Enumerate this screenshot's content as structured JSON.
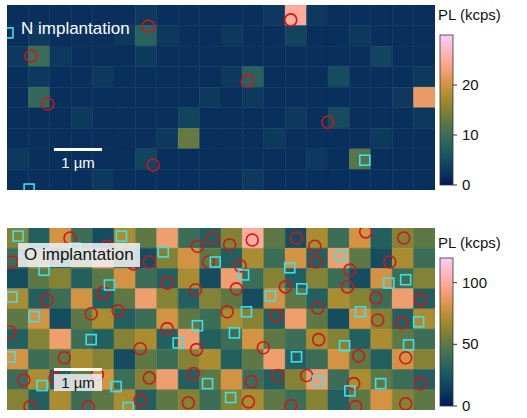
{
  "chart_data": [
    {
      "type": "heatmap",
      "title": "N implantation",
      "xlim": [
        0,
        8.9
      ],
      "ylim": [
        0,
        3.85
      ],
      "tick_labels": false,
      "cells": [
        [
          2,
          2,
          2,
          2,
          2,
          2,
          3,
          2,
          2,
          2,
          2,
          2,
          3,
          25,
          3,
          2,
          2,
          2,
          2,
          2
        ],
        [
          2,
          3,
          2,
          2,
          2,
          3,
          8,
          3,
          2,
          2,
          3,
          2,
          2,
          4,
          2,
          2,
          3,
          2,
          2,
          2
        ],
        [
          3,
          10,
          3,
          2,
          2,
          2,
          3,
          2,
          2,
          2,
          2,
          2,
          2,
          2,
          2,
          2,
          2,
          4,
          2,
          2
        ],
        [
          2,
          3,
          2,
          2,
          3,
          2,
          2,
          2,
          2,
          2,
          3,
          8,
          2,
          2,
          2,
          5,
          2,
          2,
          2,
          3
        ],
        [
          2,
          9,
          2,
          2,
          2,
          2,
          2,
          2,
          2,
          3,
          2,
          3,
          2,
          2,
          2,
          2,
          2,
          2,
          3,
          22
        ],
        [
          2,
          2,
          2,
          3,
          2,
          2,
          2,
          2,
          4,
          2,
          2,
          2,
          2,
          3,
          2,
          5,
          2,
          2,
          2,
          3
        ],
        [
          2,
          2,
          2,
          2,
          2,
          2,
          2,
          3,
          13,
          2,
          2,
          2,
          3,
          2,
          2,
          2,
          2,
          3,
          2,
          2
        ],
        [
          3,
          2,
          2,
          2,
          2,
          2,
          4,
          2,
          2,
          2,
          2,
          2,
          2,
          2,
          3,
          2,
          12,
          2,
          2,
          2
        ],
        [
          2,
          2,
          2,
          2,
          3,
          2,
          2,
          2,
          2,
          2,
          2,
          3,
          2,
          2,
          2,
          2,
          2,
          2,
          2,
          2
        ]
      ],
      "colorbar": {
        "label": "PL (kcps)",
        "range": [
          0,
          30
        ],
        "ticks": [
          0,
          10,
          20
        ]
      },
      "scale_bar": {
        "length": 1,
        "label": "1 µm"
      },
      "series": [
        {
          "marker": "circle",
          "color": "#c8191e",
          "x": [
            2.94,
            5.9,
            0.5,
            0.85,
            5.0,
            6.67,
            3.04
          ],
          "y": [
            0.44,
            0.31,
            1.06,
            2.06,
            1.58,
            2.44,
            3.33
          ]
        },
        {
          "marker": "square",
          "color": "#3ee0ea",
          "x": [
            0.02,
            7.44,
            0.46
          ],
          "y": [
            0.58,
            3.23,
            3.83
          ]
        }
      ]
    },
    {
      "type": "heatmap",
      "title": "O implantation",
      "xlim": [
        0,
        8.9
      ],
      "ylim": [
        0,
        3.8
      ],
      "tick_labels": false,
      "cells": [
        [
          60,
          30,
          80,
          40,
          20,
          70,
          50,
          90,
          40,
          30,
          60,
          100,
          50,
          20,
          70,
          40,
          80,
          30,
          60,
          50
        ],
        [
          40,
          70,
          30,
          60,
          90,
          40,
          20,
          60,
          80,
          50,
          30,
          70,
          40,
          80,
          30,
          90,
          50,
          20,
          70,
          40
        ],
        [
          20,
          50,
          60,
          30,
          50,
          80,
          40,
          30,
          70,
          20,
          90,
          40,
          60,
          30,
          60,
          40,
          20,
          80,
          40,
          60
        ],
        [
          70,
          30,
          40,
          80,
          30,
          50,
          90,
          60,
          30,
          60,
          50,
          20,
          80,
          50,
          30,
          70,
          60,
          40,
          90,
          30
        ],
        [
          50,
          80,
          20,
          50,
          70,
          30,
          40,
          80,
          50,
          40,
          70,
          60,
          30,
          90,
          50,
          20,
          80,
          60,
          30,
          70
        ],
        [
          30,
          60,
          90,
          40,
          30,
          60,
          70,
          30,
          90,
          30,
          40,
          80,
          50,
          40,
          70,
          60,
          30,
          70,
          50,
          40
        ],
        [
          80,
          40,
          50,
          70,
          60,
          20,
          50,
          40,
          60,
          70,
          30,
          50,
          90,
          30,
          40,
          80,
          50,
          30,
          80,
          60
        ],
        [
          40,
          70,
          30,
          50,
          80,
          40,
          60,
          90,
          30,
          50,
          80,
          40,
          30,
          60,
          90,
          40,
          70,
          50,
          40,
          30
        ],
        [
          60,
          30,
          70,
          40,
          50,
          70,
          30,
          50,
          60,
          40,
          60,
          70,
          50,
          40,
          60,
          30,
          50,
          80,
          60,
          50
        ]
      ],
      "colorbar": {
        "label": "PL (kcps)",
        "range": [
          0,
          120
        ],
        "ticks": [
          0,
          50,
          100
        ]
      },
      "scale_bar": {
        "length": 1,
        "label": "1 µm"
      },
      "series": [
        {
          "marker": "circle",
          "color": "#c8191e",
          "x": [
            1.31,
            2.08,
            3.96,
            4.27,
            4.63,
            5.1,
            6.02,
            6.4,
            7.46,
            8.25,
            0.1,
            1.04,
            2.63,
            2.96,
            4.19,
            4.85,
            6.42,
            7.13,
            7.96,
            2.0,
            3.33,
            3.92,
            4.77,
            5.79,
            7.08,
            7.67,
            8.6,
            0.06,
            0.83,
            1.75,
            2.31,
            3.33,
            4.58,
            5.6,
            6.46,
            7.71,
            8.21,
            2.77,
            3.94,
            5.33,
            6.48,
            7.31,
            8.29,
            1.19,
            0.35,
            1.0,
            1.88,
            2.96,
            3.88,
            5.08,
            5.63,
            6.23,
            7.21,
            8.6,
            0.48,
            1.69,
            2.77,
            3.77,
            5.02,
            5.9,
            7.25,
            8.29
          ],
          "y": [
            0.21,
            0.38,
            0.38,
            0.21,
            0.35,
            0.25,
            0.21,
            0.38,
            0.08,
            0.21,
            0.71,
            0.6,
            0.75,
            0.71,
            0.71,
            0.79,
            0.71,
            0.88,
            0.71,
            1.35,
            1.15,
            1.29,
            1.27,
            1.23,
            1.23,
            1.46,
            1.5,
            2.17,
            1.5,
            1.79,
            1.73,
            2.1,
            1.75,
            1.83,
            1.67,
            1.92,
            1.98,
            2.52,
            2.54,
            2.5,
            2.33,
            2.67,
            2.71,
            2.71,
            3.17,
            3.13,
            3.06,
            3.13,
            3.04,
            3.21,
            3.08,
            3.08,
            3.25,
            3.25,
            3.73,
            3.73,
            3.6,
            3.65,
            3.63,
            3.71,
            3.73,
            3.67
          ]
        },
        {
          "marker": "square",
          "color": "#3ee0ea",
          "x": [
            0.23,
            1.42,
            2.38,
            3.25,
            4.33,
            5.88,
            6.94,
            8.29,
            0.1,
            0.77,
            2.13,
            4.92,
            5.48,
            6.13,
            7.94,
            0.56,
            3.96,
            4.98,
            7.35,
            8.56,
            1.75,
            3.56,
            4.73,
            6.02,
            7.02,
            8.35,
            0.06,
            0.73,
            2.27,
            4.17,
            6.46,
            7.77,
            2.52,
            4.65,
            7.13
          ],
          "y": [
            0.17,
            0.42,
            0.17,
            0.5,
            0.71,
            0.83,
            0.58,
            1.08,
            1.44,
            0.88,
            1.19,
            0.98,
            1.42,
            1.27,
            1.15,
            1.85,
            2.04,
            1.75,
            1.75,
            1.96,
            2.33,
            2.4,
            2.19,
            2.69,
            2.46,
            2.44,
            2.69,
            3.29,
            3.31,
            3.25,
            3.19,
            3.25,
            3.75,
            3.54,
            3.4
          ]
        }
      ]
    }
  ]
}
